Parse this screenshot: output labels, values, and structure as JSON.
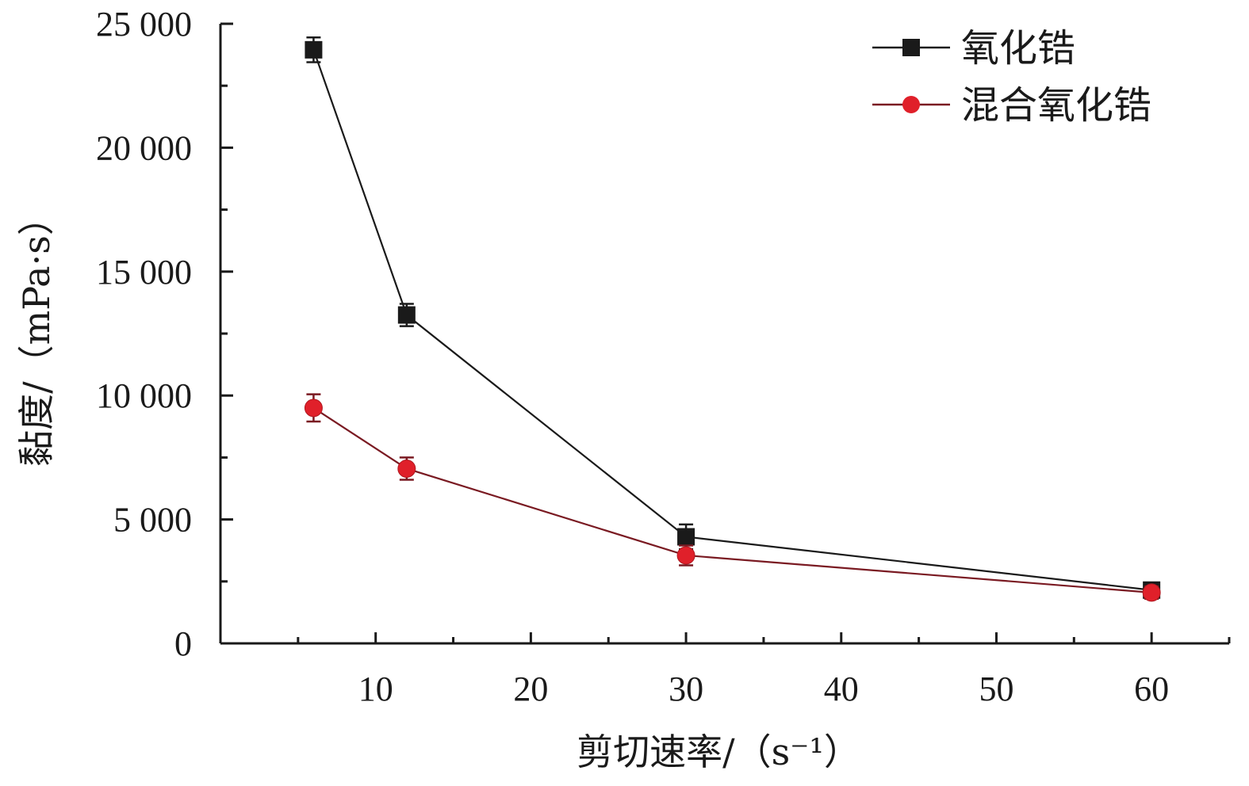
{
  "chart_data": {
    "type": "line",
    "xlabel": "剪切速率/（s⁻¹）",
    "ylabel": "黏度/（mPa·s）",
    "xlim": [
      0,
      65
    ],
    "ylim": [
      0,
      25000
    ],
    "x_ticks": [
      10,
      20,
      30,
      40,
      50,
      60
    ],
    "x_tick_labels": [
      "10",
      "20",
      "30",
      "40",
      "50",
      "60"
    ],
    "y_ticks": [
      0,
      5000,
      10000,
      15000,
      20000,
      25000
    ],
    "y_tick_labels": [
      "0",
      "5 000",
      "10 000",
      "15 000",
      "20 000",
      "25 000"
    ],
    "grid": false,
    "legend_position": "top-right",
    "series": [
      {
        "name": "氧化锆",
        "marker": "square",
        "color": "#1a1a1a",
        "x": [
          6,
          12,
          30,
          60
        ],
        "values": [
          23950,
          13250,
          4300,
          2150
        ],
        "error": [
          500,
          450,
          500,
          300
        ]
      },
      {
        "name": "混合氧化锆",
        "marker": "circle",
        "color": "#e0202a",
        "line_color": "#7a1a22",
        "x": [
          6,
          12,
          30,
          60
        ],
        "values": [
          9500,
          7050,
          3550,
          2050
        ],
        "error": [
          550,
          450,
          400,
          250
        ]
      }
    ]
  }
}
